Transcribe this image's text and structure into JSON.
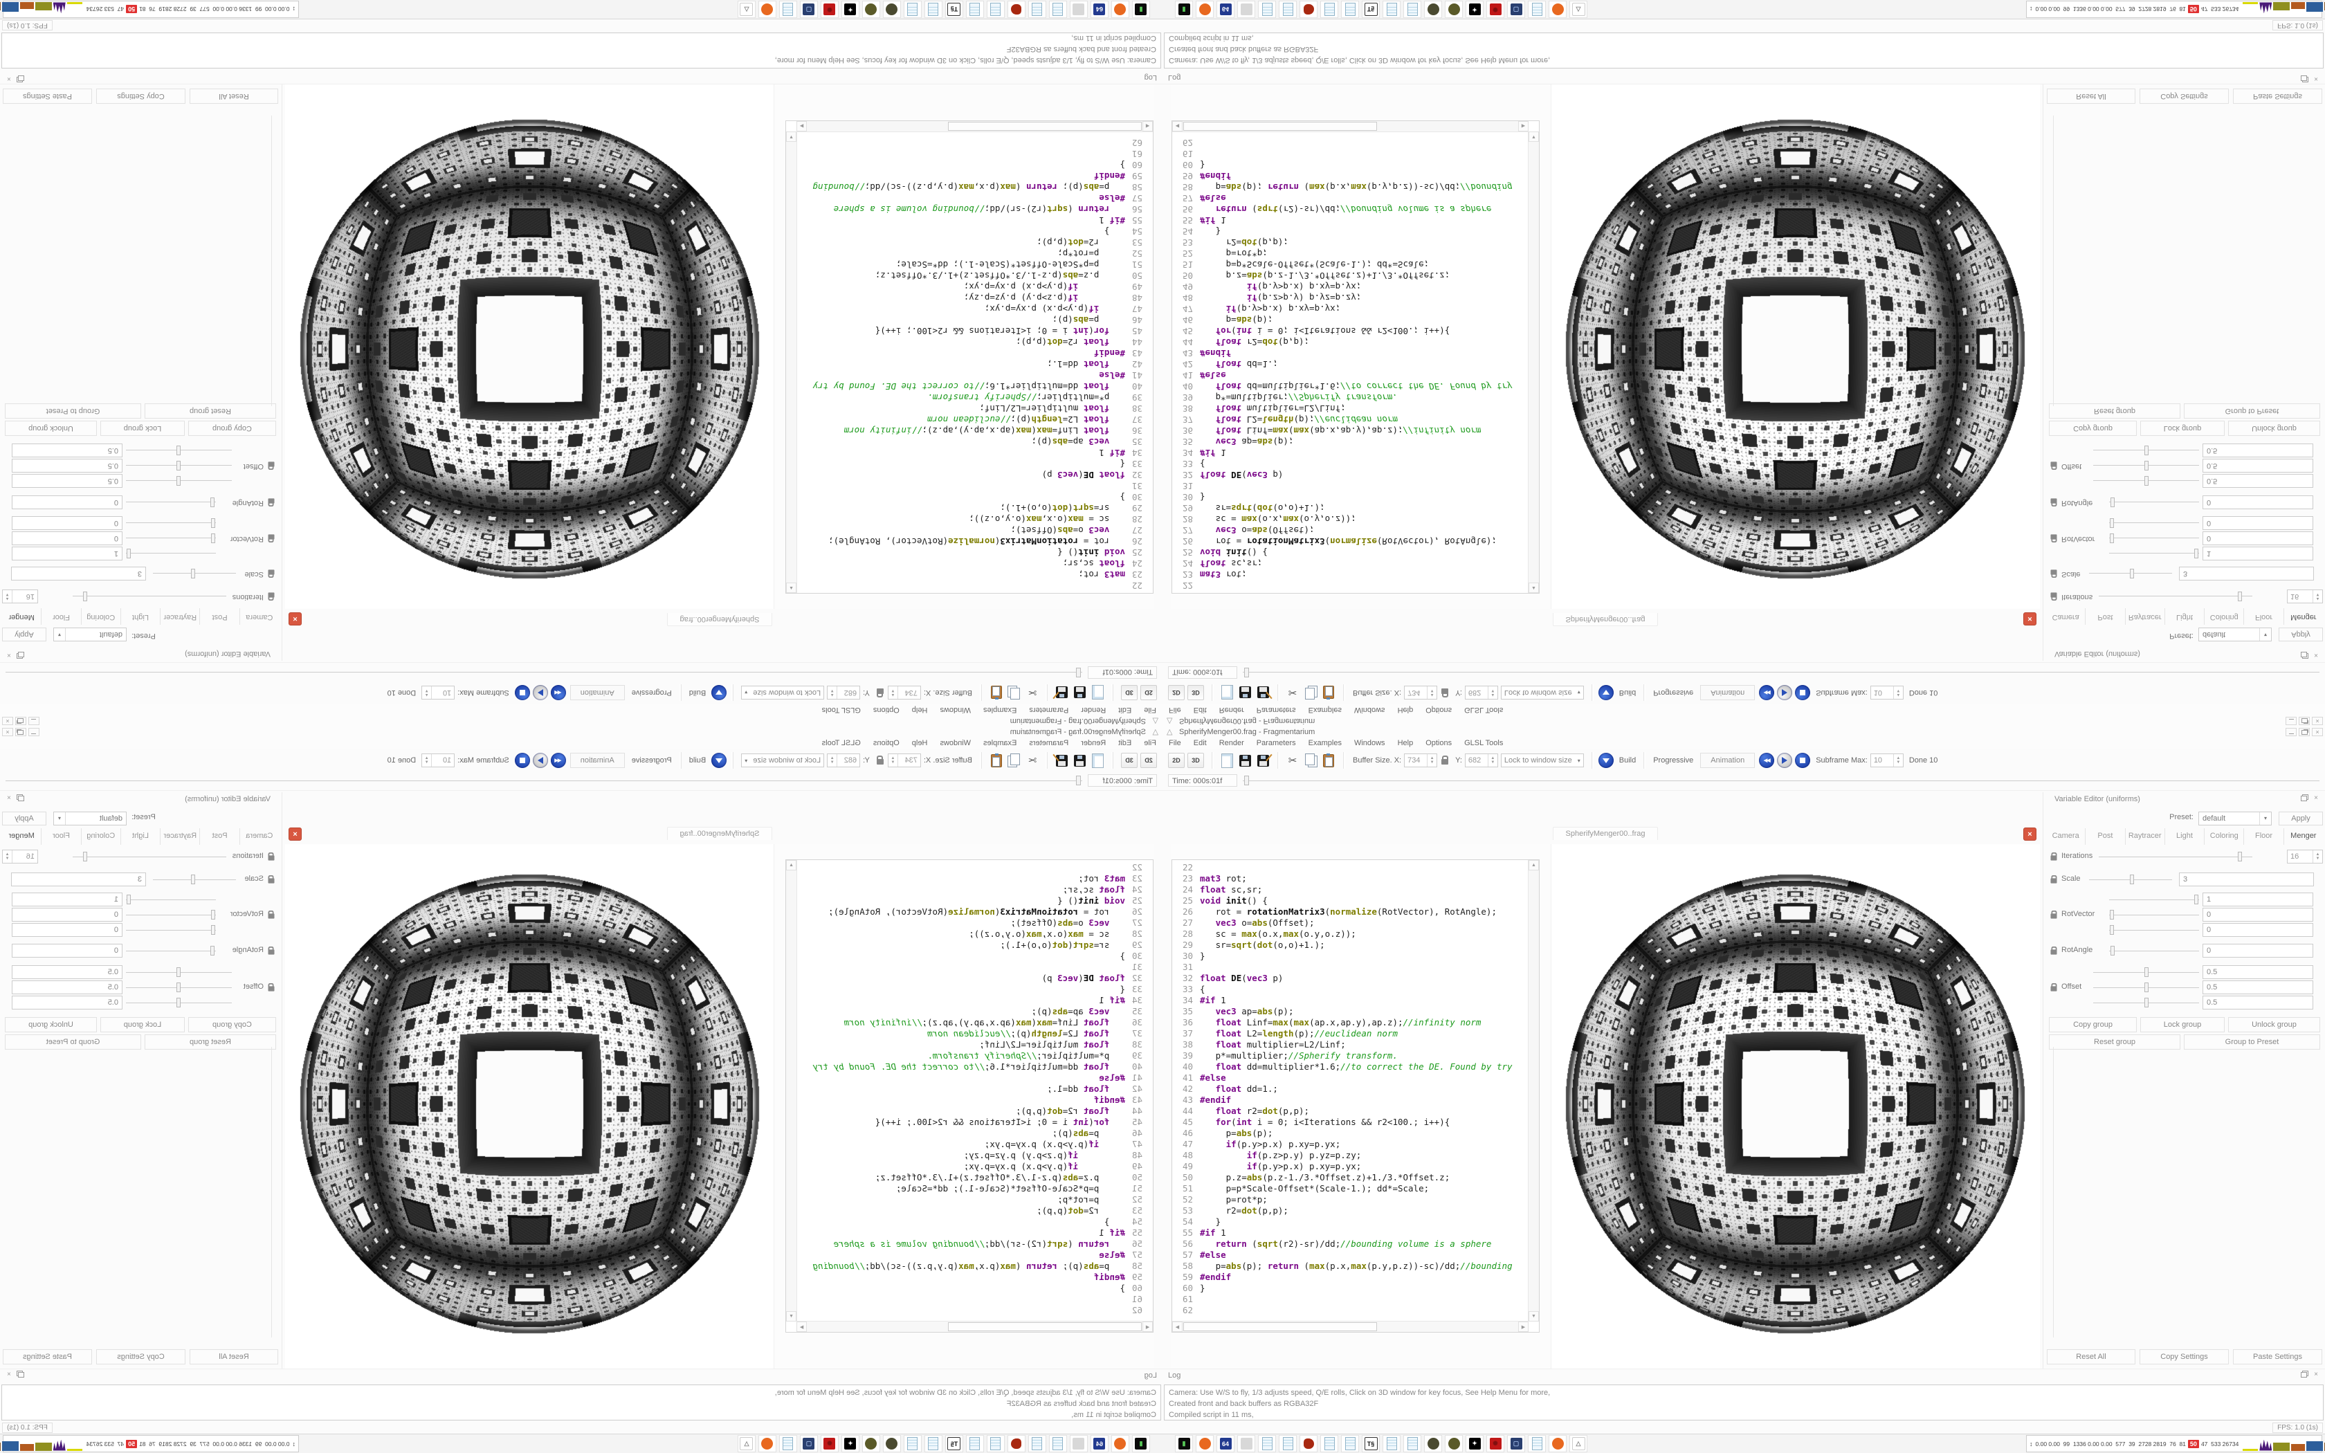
{
  "window": {
    "title": "SpherifyMenger00.frag - Fragmentarium"
  },
  "menubar": {
    "items": [
      "File",
      "Edit",
      "Render",
      "Parameters",
      "Examples",
      "Windows",
      "Help",
      "Options",
      "GLSL Tools"
    ]
  },
  "toolbar": {
    "btn_2d": "2D",
    "btn_3d": "3D",
    "buffer_size_label": "Buffer Size. X:",
    "buffer_x": "734",
    "y_label": "Y:",
    "buffer_y": "682",
    "lock_combo_value": "Lock to window size",
    "build_label": "Build",
    "progressive_label": "Progressive",
    "animation_label": "Animation",
    "subframe_label": "Subframe Max:",
    "subframe_max": "10",
    "done_label": "Done 10"
  },
  "timebar": {
    "label": "Time: 000s:01f"
  },
  "center_tab": {
    "title": "SpherifyMenger00..frag"
  },
  "editor": {
    "first_line": 22,
    "lines": [
      "",
      "mat3 rot;",
      "float sc,sr;",
      "void init() {",
      "   rot = rotationMatrix3(normalize(RotVector), RotAngle);",
      "   vec3 o=abs(Offset);",
      "   sc = max(o.x,max(o.y,o.z));",
      "   sr=sqrt(dot(o,o)+1.);",
      "}",
      "",
      "float DE(vec3 p)",
      "{",
      "#if 1",
      "   vec3 ap=abs(p);",
      "   float Linf=max(max(ap.x,ap.y),ap.z);//infinity norm",
      "   float L2=length(p);//euclidean norm",
      "   float multiplier=L2/Linf;",
      "   p*=multiplier;//Spherify transform.",
      "   float dd=multiplier*1.6;//to correct the DE. Found by try",
      "#else",
      "   float dd=1.;",
      "#endif",
      "   float r2=dot(p,p);",
      "   for(int i = 0; i<Iterations && r2<100.; i++){",
      "     p=abs(p);",
      "     if(p.y>p.x) p.xy=p.yx;",
      "         if(p.z>p.y) p.yz=p.zy;",
      "         if(p.y>p.x) p.xy=p.yx;",
      "     p.z=abs(p.z-1./3.*Offset.z)+1./3.*Offset.z;",
      "     p=p*Scale-Offset*(Scale-1.); dd*=Scale;",
      "     p=rot*p;",
      "     r2=dot(p,p);",
      "   }",
      "#if 1",
      "   return (sqrt(r2)-sr)/dd;//bounding volume is a sphere",
      "#else",
      "   p=abs(p); return (max(p.x,max(p.y,p.z))-sc)/dd;//bounding",
      "#endif",
      "}",
      "",
      ""
    ]
  },
  "variable_editor": {
    "dock_title": "Variable Editor (uniforms)",
    "preset_label": "Preset:",
    "preset_value": "default",
    "apply_label": "Apply",
    "tabs": [
      "Camera",
      "Post",
      "Raytracer",
      "Light",
      "Coloring",
      "Floor",
      "Menger"
    ],
    "active_tab": "Menger",
    "uniforms": {
      "iterations": {
        "label": "Iterations",
        "value": "16",
        "slider": 0.92
      },
      "scale": {
        "label": "Scale",
        "value": "3",
        "slider": 0.52
      },
      "rotvector": {
        "label": "RotVector",
        "values": [
          "1",
          "0",
          "0"
        ],
        "sliders": [
          0.97,
          0.03,
          0.03
        ]
      },
      "rotangle": {
        "label": "RotAngle",
        "values": [
          "0"
        ],
        "sliders": [
          0.04
        ]
      },
      "offset": {
        "label": "Offset",
        "values": [
          "0.5",
          "0.5",
          "0.5"
        ],
        "sliders": [
          0.5,
          0.5,
          0.5
        ]
      }
    },
    "group_buttons": [
      "Copy group",
      "Lock group",
      "Unlock group",
      "Reset group",
      "Group to Preset"
    ],
    "bottom_buttons": [
      "Reset All",
      "Copy Settings",
      "Paste Settings"
    ]
  },
  "log": {
    "dock_title": "Log",
    "lines": [
      "Camera: Use W/S to fly, 1/3 adjusts speed, Q/E rolls, Click on 3D window for key focus, See Help Menu for more,",
      "Created front and back buffers as RGBA32F",
      "Compiled script in 11 ms,"
    ]
  },
  "statusbar": {
    "fps": "FPS: 1.0 (1s)"
  },
  "taskbar": {
    "icons": [
      {
        "name": "console",
        "shape": "sq",
        "bg": "#0a0a0a",
        "fg": "#58c858",
        "glyph": "▮"
      },
      {
        "name": "firefox",
        "shape": "ci",
        "bg": "#e8681f",
        "glyph": ""
      },
      {
        "name": "commander-64",
        "shape": "sq",
        "bg": "#223a8f",
        "fg": "#ffffff",
        "glyph": "64"
      },
      {
        "name": "printer",
        "shape": "sq",
        "bg": "#d8d8d8",
        "fg": "#888888",
        "glyph": ""
      },
      {
        "name": "notepad",
        "shape": "pg",
        "bg": "",
        "glyph": ""
      },
      {
        "name": "notepad",
        "shape": "pg",
        "bg": "",
        "glyph": ""
      },
      {
        "name": "paint-splat",
        "shape": "bl",
        "bg": "#a82810",
        "glyph": ""
      },
      {
        "name": "notepad",
        "shape": "pg",
        "bg": "",
        "glyph": ""
      },
      {
        "name": "notepad",
        "shape": "pg",
        "bg": "",
        "glyph": ""
      },
      {
        "name": "text-document",
        "shape": "sq",
        "bg": "#ffffff",
        "fg": "#111111",
        "glyph": "T§",
        "border": "#333333"
      },
      {
        "name": "notepad",
        "shape": "pg",
        "bg": "",
        "glyph": ""
      },
      {
        "name": "notepad",
        "shape": "pg",
        "bg": "",
        "glyph": ""
      },
      {
        "name": "globe-dark",
        "shape": "ci",
        "bg": "#4a4a30",
        "glyph": ""
      },
      {
        "name": "globe-olive",
        "shape": "ci",
        "bg": "#5a5a28",
        "glyph": ""
      },
      {
        "name": "swirl-bw",
        "shape": "sq",
        "bg": "#000000",
        "fg": "#ffffff",
        "glyph": "✦"
      },
      {
        "name": "medallion-red",
        "shape": "sq",
        "bg": "#c01818",
        "fg": "#801010",
        "glyph": "✺"
      },
      {
        "name": "remote-desktop",
        "shape": "sq",
        "bg": "#2a3f6f",
        "fg": "#9ab4e0",
        "glyph": "▢"
      },
      {
        "name": "notepad",
        "shape": "pg",
        "bg": "",
        "glyph": ""
      },
      {
        "name": "firefox",
        "shape": "ci",
        "bg": "#e8681f",
        "glyph": ""
      },
      {
        "name": "fragmentarium",
        "shape": "sq",
        "bg": "#ffffff",
        "fg": "#888888",
        "glyph": "△",
        "border": "#cccccc"
      }
    ],
    "sysmon": {
      "arrow": "↕",
      "values": "0.00 0.00  99  1336 0.00 0.00  577  39  2728 2819  76  81",
      "highlight": "50",
      "values2": "47  533 26734",
      "graphs": [
        {
          "c": "#d8d800",
          "h": 3,
          "w": 22,
          "spike": false
        },
        {
          "c": "#4b1a78",
          "h": 16,
          "w": 18,
          "spike": true
        },
        {
          "c": "#8f8f1f",
          "h": 12,
          "w": 24,
          "spike": false
        },
        {
          "c": "#b35a1f",
          "h": 10,
          "w": 20,
          "spike": false
        },
        {
          "c": "#2d5e9b",
          "h": 14,
          "w": 24,
          "spike": false
        },
        {
          "c": "#8a5a28",
          "h": 12,
          "w": 20,
          "spike": false
        },
        {
          "c": "#33bb33",
          "h": 2,
          "w": 18,
          "spike": false
        },
        {
          "c": "#801010",
          "h": 14,
          "w": 20,
          "spike": true
        }
      ]
    }
  },
  "colors": {
    "tab_close_red": "#d85740",
    "build_blue": "#1b3fae",
    "alert_red": "#e03030"
  },
  "render_view": {
    "style": "grayscale spherified Menger sponge fractal on white background"
  }
}
